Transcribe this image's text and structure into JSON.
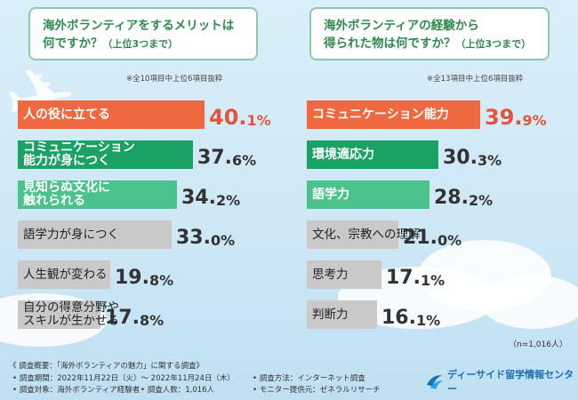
{
  "colors": {
    "highlight": "#f06840",
    "green_dark": "#1aa265",
    "green_light": "#4cc38c",
    "gray": "#c9c9c9"
  },
  "chart_data": [
    {
      "type": "bar",
      "title": "海外ボランティアをするメリットは何ですか？",
      "title_line1": "海外ボランティアをするメリットは",
      "title_line2": "何ですか？",
      "subtitle": "（上位3つまで）",
      "note": "※全10項目中上位6項目抜粋",
      "unit": "%",
      "categories": [
        "人の役に立てる",
        "コミュニケーション能力が身につく",
        "見知らぬ文化に触れられる",
        "語学力が身につく",
        "人生観が変わる",
        "自分の得意分野やスキルが生かせる"
      ],
      "category_lines": [
        [
          "人の役に立てる"
        ],
        [
          "コミュニケーション",
          "能力が身につく"
        ],
        [
          "見知らぬ文化に",
          "触れられる"
        ],
        [
          "語学力が身につく"
        ],
        [
          "人生観が変わる"
        ],
        [
          "自分の得意分野や",
          "スキルが生かせる"
        ]
      ],
      "values": [
        40.1,
        37.6,
        34.2,
        33.0,
        19.8,
        17.8
      ],
      "value_labels": [
        [
          "40.",
          "1%"
        ],
        [
          "37.",
          "6%"
        ],
        [
          "34.",
          "2%"
        ],
        [
          "33.",
          "0%"
        ],
        [
          "19.",
          "8%"
        ],
        [
          "17.",
          "8%"
        ]
      ],
      "xlim": [
        0,
        40.1
      ]
    },
    {
      "type": "bar",
      "title": "海外ボランティアの経験から得られた物は何ですか？",
      "title_line1": "海外ボランティアの経験から",
      "title_line2": "得られた物は何ですか？",
      "subtitle": "（上位3つまで）",
      "note": "※全13項目中上位6項目抜粋",
      "unit": "%",
      "categories": [
        "コミュニケーション能力",
        "環境適応力",
        "語学力",
        "文化、宗教への理解",
        "思考力",
        "判断力"
      ],
      "category_lines": [
        [
          "コミュニケーション能力"
        ],
        [
          "環境適応力"
        ],
        [
          "語学力"
        ],
        [
          "文化、宗教への理解"
        ],
        [
          "思考力"
        ],
        [
          "判断力"
        ]
      ],
      "values": [
        39.9,
        30.3,
        28.2,
        21.0,
        17.1,
        16.1
      ],
      "value_labels": [
        [
          "39.",
          "9%"
        ],
        [
          "30.",
          "3%"
        ],
        [
          "28.",
          "2%"
        ],
        [
          "21.",
          "0%"
        ],
        [
          "17.",
          "1%"
        ],
        [
          "16.",
          "1%"
        ]
      ],
      "xlim": [
        0,
        39.9
      ]
    }
  ],
  "respondents": "（n=1,016人）",
  "survey": {
    "summary": "《 調査概要：「海外ボランティアの魅力」に関する調査》",
    "period": "• 調査期間：2022年11月22日（火）～ 2022年11月24日（木）",
    "target": "• 調査対象：海外ボランティア経験者",
    "count": "• 調査人数：1,016人",
    "method": "• 調査方法：インターネット調査",
    "provider": "• モニター提供元：ゼネラルリサーチ"
  },
  "brand": {
    "name": "ディーサイド留学情報センター",
    "icon": "wave-logo-icon"
  }
}
